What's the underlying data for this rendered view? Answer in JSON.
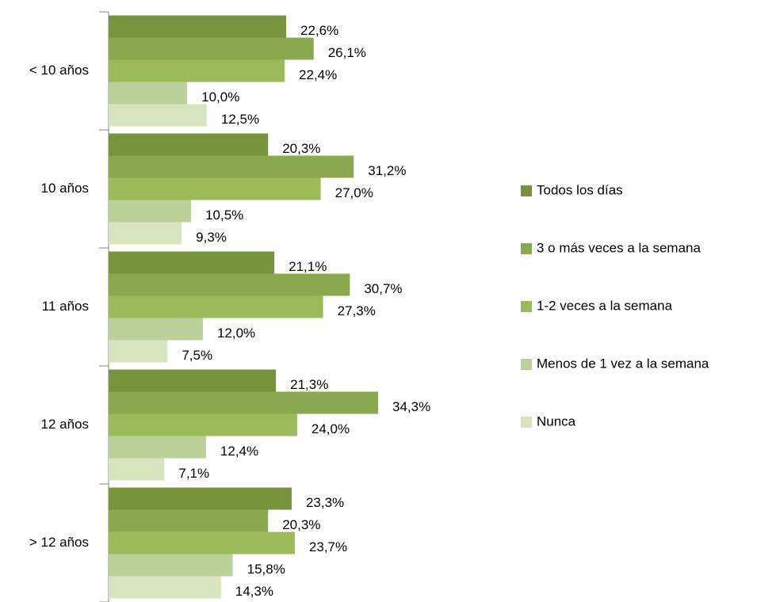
{
  "chart_data": {
    "type": "bar",
    "orientation": "horizontal",
    "categories": [
      "< 10 años",
      "10 años",
      "11 años",
      "12 años",
      "> 12 años"
    ],
    "series": [
      {
        "name": "Todos los días",
        "color": "#77933c",
        "values": [
          22.6,
          20.3,
          21.1,
          21.3,
          23.3
        ],
        "value_labels": [
          "22,6%",
          "20,3%",
          "21,1%",
          "21,3%",
          "23,3%"
        ]
      },
      {
        "name": "3 o más veces a la semana",
        "color": "#8aa84e",
        "values": [
          26.1,
          31.2,
          30.7,
          34.3,
          20.3
        ],
        "value_labels": [
          "26,1%",
          "31,2%",
          "30,7%",
          "34,3%",
          "20,3%"
        ]
      },
      {
        "name": "1-2 veces a la semana",
        "color": "#9bbb59",
        "values": [
          22.4,
          27.0,
          27.3,
          24.0,
          23.7
        ],
        "value_labels": [
          "22,4%",
          "27,0%",
          "27,3%",
          "24,0%",
          "23,7%"
        ]
      },
      {
        "name": "Menos de 1 vez a la semana",
        "color": "#bcd09a",
        "values": [
          10.0,
          10.5,
          12.0,
          12.4,
          15.8
        ],
        "value_labels": [
          "10,0%",
          "10,5%",
          "12,0%",
          "12,4%",
          "15,8%"
        ]
      },
      {
        "name": "Nunca",
        "color": "#d7e4bd",
        "values": [
          12.5,
          9.3,
          7.5,
          7.1,
          14.3
        ],
        "value_labels": [
          "12,5%",
          "9,3%",
          "7,5%",
          "7,1%",
          "14,3%"
        ]
      }
    ],
    "legend": "right"
  }
}
